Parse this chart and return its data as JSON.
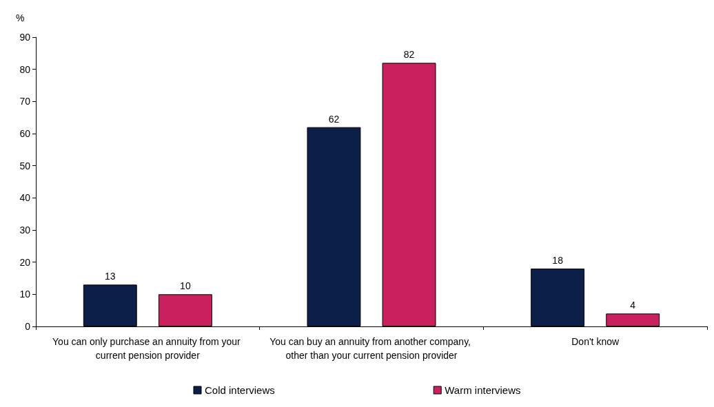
{
  "chart_data": {
    "type": "bar",
    "ylabel": "%",
    "categories": [
      "You can only purchase an annuity from your current pension provider",
      "You can buy an annuity from another company, other than your current pension provider",
      "Don't know"
    ],
    "series": [
      {
        "name": "Cold interviews",
        "color": "#0b1f48",
        "values": [
          13,
          62,
          18
        ]
      },
      {
        "name": "Warm interviews",
        "color": "#c8215e",
        "values": [
          10,
          82,
          4
        ]
      }
    ],
    "ylim": [
      0,
      90
    ],
    "yticks": [
      0,
      10,
      20,
      30,
      40,
      50,
      60,
      70,
      80,
      90
    ],
    "grid": false,
    "legend": "bottom",
    "data_labels": true
  }
}
